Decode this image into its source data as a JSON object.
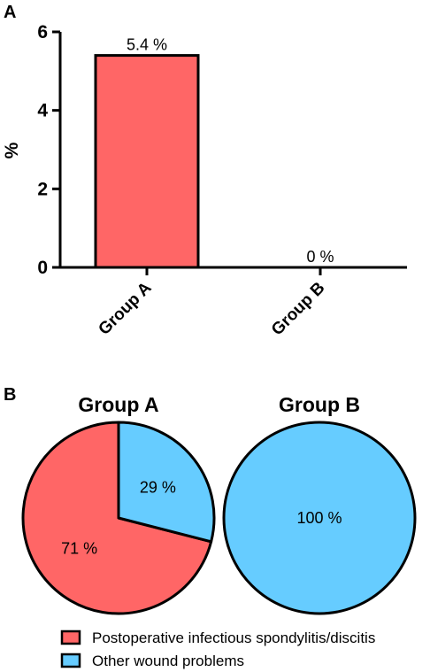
{
  "panels": {
    "a": "A",
    "b": "B"
  },
  "chart_data": [
    {
      "type": "bar",
      "categories": [
        "Group A",
        "Group B"
      ],
      "values": [
        5.4,
        0
      ],
      "data_labels": [
        "5.4 %",
        "0 %"
      ],
      "ylabel": "%",
      "ylim": [
        0,
        6
      ],
      "yticks": [
        0,
        2,
        4,
        6
      ],
      "colors": [
        "#FF6666",
        "#FF6666"
      ],
      "grid": false
    },
    {
      "type": "pie",
      "title": "Group A",
      "labels": [
        "Postoperative infectious spondylitis/discitis",
        "Other wound problems"
      ],
      "values": [
        71,
        29
      ],
      "data_labels": [
        "71 %",
        "29 %"
      ],
      "colors": [
        "#FF6666",
        "#66CCFF"
      ]
    },
    {
      "type": "pie",
      "title": "Group B",
      "labels": [
        "Postoperative infectious spondylitis/discitis",
        "Other wound problems"
      ],
      "values": [
        0,
        100
      ],
      "data_labels": [
        "",
        "100 %"
      ],
      "colors": [
        "#FF6666",
        "#66CCFF"
      ]
    }
  ],
  "legend": {
    "placement": "bottom",
    "items": [
      {
        "label": "Postoperative infectious spondylitis/discitis",
        "color": "#FF6666"
      },
      {
        "label": "Other wound problems",
        "color": "#66CCFF"
      }
    ]
  }
}
